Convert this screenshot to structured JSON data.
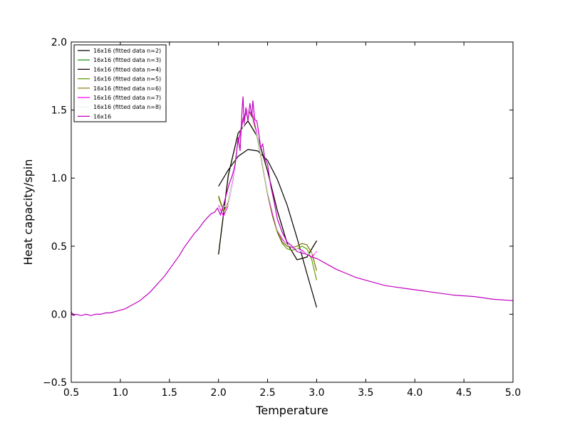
{
  "chart_data": {
    "type": "line",
    "xlabel": "Temperature",
    "ylabel": "Heat capacity/spin",
    "xlim": [
      0.5,
      5.0
    ],
    "ylim": [
      -0.5,
      2.0
    ],
    "xticks": [
      "0.5",
      "1.0",
      "1.5",
      "2.0",
      "2.5",
      "3.0",
      "3.5",
      "4.0",
      "4.5",
      "5.0"
    ],
    "yticks": [
      "−0.5",
      "0.0",
      "0.5",
      "1.0",
      "1.5",
      "2.0"
    ],
    "grid": false,
    "legend_position": "top-left",
    "series": [
      {
        "name": "16x16 (fitted data n=2)",
        "color": "#000000",
        "x": [
          2.0,
          2.1,
          2.2,
          2.3,
          2.4,
          2.5,
          2.6,
          2.7,
          2.8,
          2.9,
          3.0
        ],
        "y": [
          0.94,
          1.06,
          1.16,
          1.21,
          1.2,
          1.13,
          0.99,
          0.8,
          0.56,
          0.3,
          0.05
        ]
      },
      {
        "name": "16x16 (fitted data n=3)",
        "color": "#008000",
        "x": [
          2.0,
          2.1,
          2.2,
          2.3,
          2.4,
          2.5,
          2.6,
          2.7,
          2.8,
          2.9,
          3.0
        ],
        "y": [
          0.44,
          1.02,
          1.33,
          1.42,
          1.3,
          1.05,
          0.76,
          0.52,
          0.4,
          0.42,
          0.54
        ]
      },
      {
        "name": "16x16 (fitted data n=4)",
        "color": "#1a0000",
        "x": [
          2.0,
          2.1,
          2.2,
          2.3,
          2.4,
          2.5,
          2.6,
          2.7,
          2.8,
          2.9,
          3.0
        ],
        "y": [
          0.44,
          1.02,
          1.33,
          1.42,
          1.3,
          1.05,
          0.76,
          0.52,
          0.4,
          0.42,
          0.54
        ]
      },
      {
        "name": "16x16 (fitted data n=5)",
        "color": "#5f9e00",
        "x": [
          2.0,
          2.05,
          2.1,
          2.15,
          2.2,
          2.25,
          2.3,
          2.35,
          2.4,
          2.45,
          2.5,
          2.55,
          2.6,
          2.65,
          2.7,
          2.75,
          2.8,
          2.85,
          2.9,
          2.95,
          3.0
        ],
        "y": [
          0.86,
          0.75,
          0.82,
          1.02,
          1.26,
          1.44,
          1.5,
          1.44,
          1.28,
          1.08,
          0.88,
          0.72,
          0.6,
          0.52,
          0.48,
          0.47,
          0.48,
          0.5,
          0.48,
          0.4,
          0.25
        ]
      },
      {
        "name": "16x16 (fitted data n=6)",
        "color": "#807000",
        "x": [
          2.0,
          2.05,
          2.1,
          2.15,
          2.2,
          2.25,
          2.3,
          2.35,
          2.4,
          2.45,
          2.5,
          2.55,
          2.6,
          2.65,
          2.7,
          2.75,
          2.8,
          2.85,
          2.9,
          2.95,
          3.0
        ],
        "y": [
          0.87,
          0.76,
          0.82,
          1.01,
          1.25,
          1.43,
          1.49,
          1.45,
          1.29,
          1.09,
          0.89,
          0.73,
          0.61,
          0.53,
          0.5,
          0.49,
          0.5,
          0.52,
          0.51,
          0.45,
          0.32
        ]
      },
      {
        "name": "16x16 (fitted data n=7)",
        "color": "#ff00ff",
        "x": [
          2.0,
          2.05,
          2.1,
          2.15,
          2.2,
          2.25,
          2.3,
          2.35,
          2.4,
          2.45,
          2.5,
          2.55,
          2.6,
          2.65,
          2.7,
          2.75,
          2.8,
          2.85,
          2.9,
          2.95,
          3.0
        ],
        "y": [
          0.8,
          0.72,
          0.8,
          1.0,
          1.25,
          1.43,
          1.5,
          1.46,
          1.3,
          1.1,
          0.9,
          0.74,
          0.62,
          0.55,
          0.51,
          0.49,
          0.48,
          0.47,
          0.44,
          0.42,
          0.46
        ]
      },
      {
        "name": "16x16 (fitted data n=8)",
        "color": "#e0f5f0",
        "x": [
          2.0,
          2.1,
          2.2,
          2.3,
          2.4,
          2.5,
          2.6,
          2.7,
          2.8,
          2.9,
          3.0
        ],
        "y": [
          0.78,
          0.8,
          1.24,
          1.5,
          1.3,
          0.9,
          0.62,
          0.51,
          0.48,
          0.44,
          0.45
        ]
      },
      {
        "name": "16x16",
        "color": "#c000c0",
        "x": [
          0.5,
          0.52,
          0.55,
          0.6,
          0.65,
          0.7,
          0.75,
          0.8,
          0.85,
          0.9,
          0.95,
          1.0,
          1.05,
          1.1,
          1.15,
          1.2,
          1.25,
          1.3,
          1.35,
          1.4,
          1.45,
          1.5,
          1.55,
          1.6,
          1.65,
          1.7,
          1.75,
          1.8,
          1.85,
          1.9,
          1.93,
          1.96,
          1.99,
          2.02,
          2.05,
          2.08,
          2.11,
          2.14,
          2.17,
          2.2,
          2.22,
          2.24,
          2.25,
          2.26,
          2.28,
          2.3,
          2.32,
          2.34,
          2.35,
          2.37,
          2.39,
          2.41,
          2.43,
          2.45,
          2.47,
          2.5,
          2.53,
          2.56,
          2.6,
          2.65,
          2.7,
          2.75,
          2.8,
          2.85,
          2.9,
          2.95,
          3.0,
          3.1,
          3.2,
          3.3,
          3.4,
          3.5,
          3.6,
          3.7,
          3.8,
          3.9,
          4.0,
          4.2,
          4.4,
          4.6,
          4.8,
          5.0
        ],
        "y": [
          0.02,
          -0.01,
          0.0,
          -0.01,
          0.0,
          -0.01,
          0.0,
          0.0,
          0.01,
          0.01,
          0.02,
          0.03,
          0.04,
          0.06,
          0.08,
          0.1,
          0.13,
          0.16,
          0.2,
          0.24,
          0.28,
          0.33,
          0.38,
          0.43,
          0.49,
          0.54,
          0.59,
          0.63,
          0.68,
          0.72,
          0.74,
          0.75,
          0.78,
          0.73,
          0.8,
          0.88,
          0.96,
          1.02,
          1.1,
          1.3,
          1.2,
          1.5,
          1.6,
          1.4,
          1.52,
          1.42,
          1.55,
          1.45,
          1.57,
          1.43,
          1.42,
          1.33,
          1.22,
          1.25,
          1.15,
          1.1,
          0.95,
          0.85,
          0.7,
          0.6,
          0.53,
          0.5,
          0.46,
          0.45,
          0.44,
          0.42,
          0.41,
          0.37,
          0.33,
          0.3,
          0.27,
          0.25,
          0.23,
          0.21,
          0.2,
          0.19,
          0.18,
          0.16,
          0.14,
          0.13,
          0.11,
          0.1
        ]
      }
    ]
  }
}
